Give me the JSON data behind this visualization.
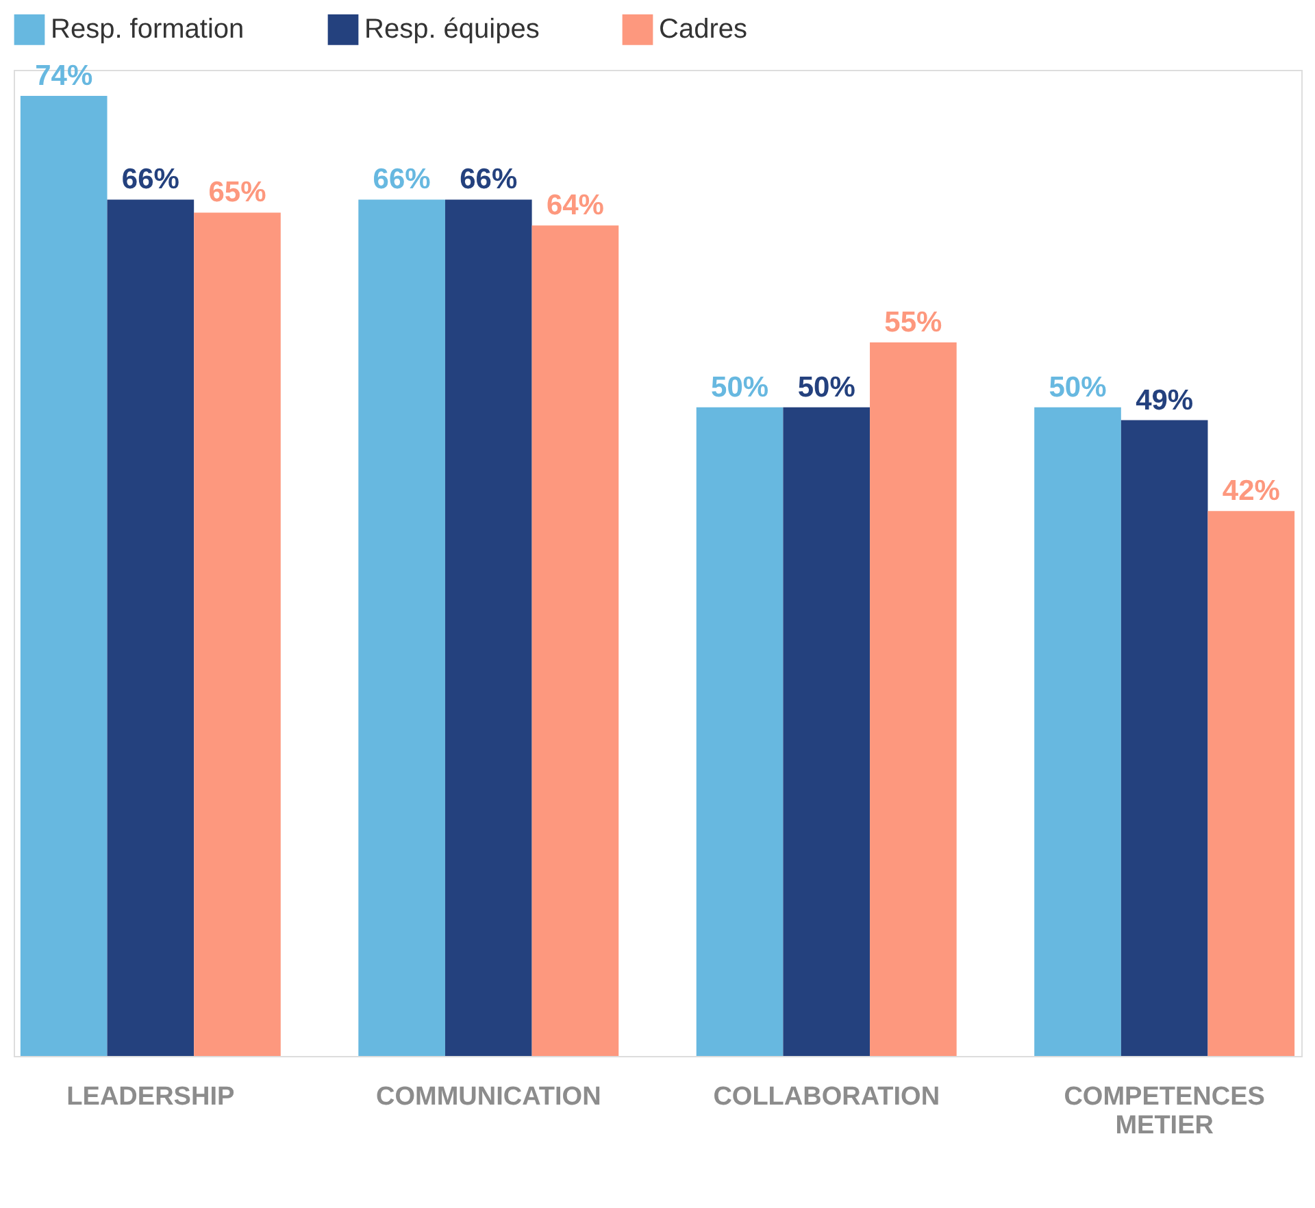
{
  "chart_data": {
    "type": "bar",
    "categories": [
      "LEADERSHIP",
      "COMMUNICATION",
      "COLLABORATION",
      "COMPETENCES METIER"
    ],
    "series": [
      {
        "name": "Resp. formation",
        "color": "#67b8e0",
        "values": [
          74,
          66,
          50,
          50
        ],
        "value_labels": [
          "74%",
          "66%",
          "50%",
          "50%"
        ]
      },
      {
        "name": "Resp. équipes",
        "color": "#24417e",
        "values": [
          66,
          66,
          50,
          49
        ],
        "value_labels": [
          "66%",
          "66%",
          "50%",
          "49%"
        ]
      },
      {
        "name": "Cadres",
        "color": "#fd987e",
        "values": [
          65,
          64,
          55,
          42
        ],
        "value_labels": [
          "65%",
          "64%",
          "55%",
          "42%"
        ]
      }
    ],
    "ylim": [
      0,
      76
    ],
    "legend": "top",
    "grid": false
  }
}
